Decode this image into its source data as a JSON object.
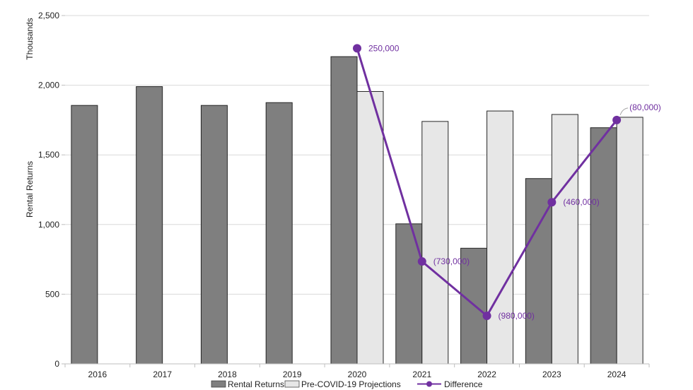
{
  "chart_data": {
    "type": "bar",
    "ylabel": "Rental Returns",
    "yunit_label": "Thousands",
    "ylim": [
      0,
      2500
    ],
    "yticks": [
      0,
      500,
      1000,
      1500,
      2000,
      2500
    ],
    "ytick_labels": [
      "0",
      "500",
      "1,000",
      "1,500",
      "2,000",
      "2,500"
    ],
    "grid": true,
    "legend_position": "bottom",
    "categories": [
      "2016",
      "2017",
      "2018",
      "2019",
      "2020",
      "2021",
      "2022",
      "2023",
      "2024"
    ],
    "series": [
      {
        "name": "Rental Returns",
        "kind": "bar",
        "color": "#7f7f7f",
        "values": [
          1855,
          1990,
          1855,
          1875,
          2205,
          1005,
          830,
          1330,
          1695
        ]
      },
      {
        "name": "Pre-COVID-19 Projections",
        "kind": "bar",
        "color": "#e7e7e7",
        "values": [
          null,
          null,
          null,
          null,
          1955,
          1740,
          1815,
          1790,
          1770
        ]
      },
      {
        "name": "Difference",
        "kind": "line",
        "color": "#7030a0",
        "values": [
          null,
          null,
          null,
          null,
          2265,
          735,
          345,
          1160,
          1750
        ],
        "labels": [
          null,
          null,
          null,
          null,
          "250,000",
          "(730,000)",
          "(980,000)",
          "(460,000)",
          "(80,000)"
        ]
      }
    ]
  }
}
